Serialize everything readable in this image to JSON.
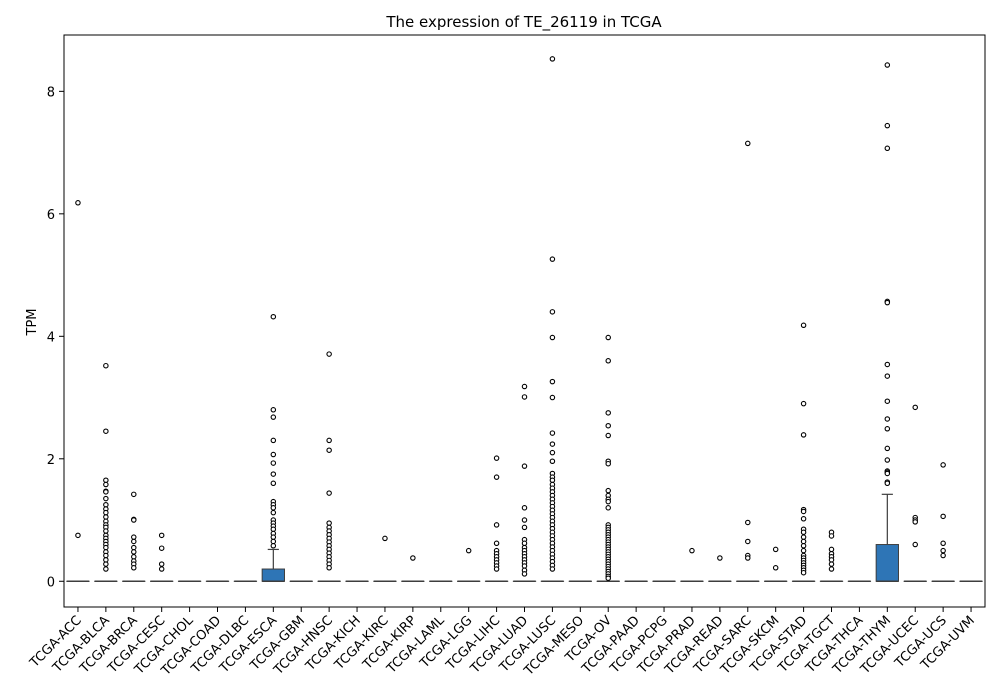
{
  "chart_data": {
    "type": "box",
    "title": "The expression of TE_26119 in TCGA",
    "xlabel": "",
    "ylabel": "TPM",
    "ylim": [
      -0.42,
      8.92
    ],
    "yticks": [
      0,
      2,
      4,
      6,
      8
    ],
    "box_color": "#2e75b6",
    "grid": false,
    "categories": [
      "TCGA-ACC",
      "TCGA-BLCA",
      "TCGA-BRCA",
      "TCGA-CESC",
      "TCGA-CHOL",
      "TCGA-COAD",
      "TCGA-DLBC",
      "TCGA-ESCA",
      "TCGA-GBM",
      "TCGA-HNSC",
      "TCGA-KICH",
      "TCGA-KIRC",
      "TCGA-KIRP",
      "TCGA-LAML",
      "TCGA-LGG",
      "TCGA-LIHC",
      "TCGA-LUAD",
      "TCGA-LUSC",
      "TCGA-MESO",
      "TCGA-OV",
      "TCGA-PAAD",
      "TCGA-PCPG",
      "TCGA-PRAD",
      "TCGA-READ",
      "TCGA-SARC",
      "TCGA-SKCM",
      "TCGA-STAD",
      "TCGA-TGCT",
      "TCGA-THCA",
      "TCGA-THYM",
      "TCGA-UCEC",
      "TCGA-UCS",
      "TCGA-UVM"
    ],
    "boxes": [
      {
        "q1": 0,
        "median": 0,
        "q3": 0,
        "whisker_low": 0,
        "whisker_high": 0,
        "outliers": [
          6.18,
          0.75
        ]
      },
      {
        "q1": 0,
        "median": 0,
        "q3": 0,
        "whisker_low": 0,
        "whisker_high": 0,
        "outliers": [
          3.52,
          2.45,
          1.65,
          1.58,
          1.47,
          1.46,
          1.35,
          1.25,
          1.18,
          1.12,
          1.05,
          0.98,
          0.92,
          0.88,
          0.82,
          0.75,
          0.7,
          0.65,
          0.6,
          0.55,
          0.48,
          0.42,
          0.35,
          0.28,
          0.2
        ]
      },
      {
        "q1": 0,
        "median": 0,
        "q3": 0,
        "whisker_low": 0,
        "whisker_high": 0,
        "outliers": [
          1.42,
          1.01,
          1.0,
          0.72,
          0.65,
          0.55,
          0.48,
          0.4,
          0.33,
          0.28,
          0.22
        ]
      },
      {
        "q1": 0,
        "median": 0,
        "q3": 0,
        "whisker_low": 0,
        "whisker_high": 0,
        "outliers": [
          0.75,
          0.54,
          0.28,
          0.2
        ]
      },
      {
        "q1": 0,
        "median": 0,
        "q3": 0,
        "whisker_low": 0,
        "whisker_high": 0,
        "outliers": []
      },
      {
        "q1": 0,
        "median": 0,
        "q3": 0,
        "whisker_low": 0,
        "whisker_high": 0,
        "outliers": []
      },
      {
        "q1": 0,
        "median": 0,
        "q3": 0,
        "whisker_low": 0,
        "whisker_high": 0,
        "outliers": []
      },
      {
        "q1": 0,
        "median": 0,
        "q3": 0.2,
        "whisker_low": 0,
        "whisker_high": 0.52,
        "outliers": [
          4.32,
          2.8,
          2.68,
          2.3,
          2.07,
          1.93,
          1.75,
          1.6,
          1.3,
          1.25,
          1.2,
          1.12,
          1.0,
          0.95,
          0.9,
          0.85,
          0.78,
          0.72,
          0.65,
          0.58
        ]
      },
      {
        "q1": 0,
        "median": 0,
        "q3": 0,
        "whisker_low": 0,
        "whisker_high": 0,
        "outliers": []
      },
      {
        "q1": 0,
        "median": 0,
        "q3": 0,
        "whisker_low": 0,
        "whisker_high": 0,
        "outliers": [
          3.71,
          2.3,
          2.14,
          1.44,
          0.95,
          0.88,
          0.82,
          0.76,
          0.7,
          0.64,
          0.58,
          0.52,
          0.46,
          0.4,
          0.34,
          0.28,
          0.22
        ]
      },
      {
        "q1": 0,
        "median": 0,
        "q3": 0,
        "whisker_low": 0,
        "whisker_high": 0,
        "outliers": []
      },
      {
        "q1": 0,
        "median": 0,
        "q3": 0,
        "whisker_low": 0,
        "whisker_high": 0,
        "outliers": [
          0.7
        ]
      },
      {
        "q1": 0,
        "median": 0,
        "q3": 0,
        "whisker_low": 0,
        "whisker_high": 0,
        "outliers": [
          0.38
        ]
      },
      {
        "q1": 0,
        "median": 0,
        "q3": 0,
        "whisker_low": 0,
        "whisker_high": 0,
        "outliers": []
      },
      {
        "q1": 0,
        "median": 0,
        "q3": 0,
        "whisker_low": 0,
        "whisker_high": 0,
        "outliers": [
          0.5
        ]
      },
      {
        "q1": 0,
        "median": 0,
        "q3": 0,
        "whisker_low": 0,
        "whisker_high": 0,
        "outliers": [
          2.01,
          1.7,
          0.92,
          0.62,
          0.5,
          0.45,
          0.4,
          0.35,
          0.3,
          0.25,
          0.2
        ]
      },
      {
        "q1": 0,
        "median": 0,
        "q3": 0,
        "whisker_low": 0,
        "whisker_high": 0,
        "outliers": [
          3.18,
          3.01,
          1.88,
          1.2,
          1.0,
          0.88,
          0.68,
          0.62,
          0.55,
          0.5,
          0.45,
          0.4,
          0.35,
          0.3,
          0.25,
          0.18,
          0.12
        ]
      },
      {
        "q1": 0,
        "median": 0,
        "q3": 0,
        "whisker_low": 0,
        "whisker_high": 0,
        "outliers": [
          8.53,
          5.26,
          4.4,
          3.98,
          3.26,
          3.0,
          2.42,
          2.24,
          2.1,
          1.96,
          1.76,
          1.7,
          1.65,
          1.58,
          1.52,
          1.46,
          1.4,
          1.34,
          1.28,
          1.22,
          1.16,
          1.1,
          1.04,
          0.98,
          0.92,
          0.86,
          0.8,
          0.74,
          0.68,
          0.62,
          0.56,
          0.5,
          0.44,
          0.38,
          0.32,
          0.26,
          0.2
        ]
      },
      {
        "q1": 0,
        "median": 0,
        "q3": 0,
        "whisker_low": 0,
        "whisker_high": 0,
        "outliers": []
      },
      {
        "q1": 0,
        "median": 0,
        "q3": 0,
        "whisker_low": 0,
        "whisker_high": 0,
        "outliers": [
          3.98,
          3.6,
          2.75,
          2.54,
          2.38,
          1.96,
          1.92,
          1.48,
          1.4,
          1.34,
          1.3,
          1.2,
          0.92,
          0.88,
          0.84,
          0.8,
          0.76,
          0.72,
          0.68,
          0.64,
          0.6,
          0.56,
          0.52,
          0.48,
          0.44,
          0.4,
          0.36,
          0.32,
          0.28,
          0.24,
          0.2,
          0.16,
          0.12,
          0.08,
          0.05
        ]
      },
      {
        "q1": 0,
        "median": 0,
        "q3": 0,
        "whisker_low": 0,
        "whisker_high": 0,
        "outliers": []
      },
      {
        "q1": 0,
        "median": 0,
        "q3": 0,
        "whisker_low": 0,
        "whisker_high": 0,
        "outliers": []
      },
      {
        "q1": 0,
        "median": 0,
        "q3": 0,
        "whisker_low": 0,
        "whisker_high": 0,
        "outliers": [
          0.5
        ]
      },
      {
        "q1": 0,
        "median": 0,
        "q3": 0,
        "whisker_low": 0,
        "whisker_high": 0,
        "outliers": [
          0.38
        ]
      },
      {
        "q1": 0,
        "median": 0,
        "q3": 0,
        "whisker_low": 0,
        "whisker_high": 0,
        "outliers": [
          7.15,
          0.96,
          0.65,
          0.42,
          0.38
        ]
      },
      {
        "q1": 0,
        "median": 0,
        "q3": 0,
        "whisker_low": 0,
        "whisker_high": 0,
        "outliers": [
          0.52,
          0.22
        ]
      },
      {
        "q1": 0,
        "median": 0,
        "q3": 0,
        "whisker_low": 0,
        "whisker_high": 0,
        "outliers": [
          4.18,
          2.9,
          2.39,
          1.17,
          1.14,
          1.02,
          0.85,
          0.8,
          0.72,
          0.65,
          0.58,
          0.5,
          0.42,
          0.38,
          0.34,
          0.3,
          0.26,
          0.22,
          0.18,
          0.14
        ]
      },
      {
        "q1": 0,
        "median": 0,
        "q3": 0,
        "whisker_low": 0,
        "whisker_high": 0,
        "outliers": [
          0.8,
          0.74,
          0.52,
          0.45,
          0.4,
          0.35,
          0.28,
          0.2
        ]
      },
      {
        "q1": 0,
        "median": 0,
        "q3": 0,
        "whisker_low": 0,
        "whisker_high": 0,
        "outliers": []
      },
      {
        "q1": 0,
        "median": 0,
        "q3": 0.6,
        "whisker_low": 0,
        "whisker_high": 1.42,
        "outliers": [
          8.43,
          7.44,
          7.07,
          4.57,
          4.55,
          3.54,
          3.35,
          2.94,
          2.65,
          2.49,
          2.17,
          1.98,
          1.8,
          1.78,
          1.76,
          1.62,
          1.6
        ]
      },
      {
        "q1": 0,
        "median": 0,
        "q3": 0,
        "whisker_low": 0,
        "whisker_high": 0,
        "outliers": [
          2.84,
          1.04,
          1.0,
          0.97,
          0.6
        ]
      },
      {
        "q1": 0,
        "median": 0,
        "q3": 0,
        "whisker_low": 0,
        "whisker_high": 0,
        "outliers": [
          1.9,
          1.06,
          0.62,
          0.5,
          0.42
        ]
      },
      {
        "q1": 0,
        "median": 0,
        "q3": 0,
        "whisker_low": 0,
        "whisker_high": 0,
        "outliers": []
      }
    ]
  }
}
